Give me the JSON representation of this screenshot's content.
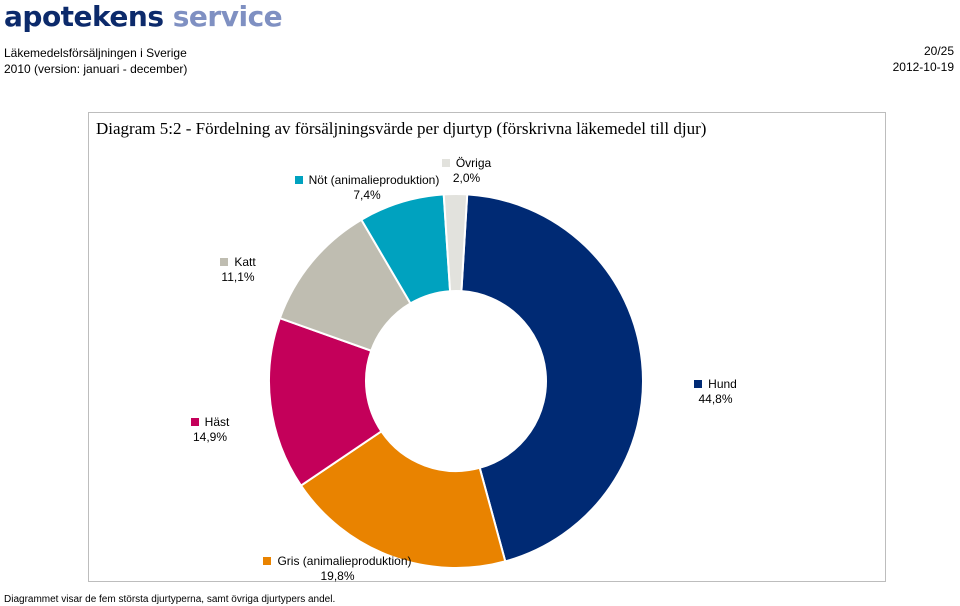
{
  "header": {
    "logo_word1": "apotekens",
    "logo_word2": "service",
    "report_title": "Läkemedelsförsäljningen i Sverige",
    "report_period": "2010 (version: januari - december)",
    "page_number": "20/25",
    "date": "2012-10-19"
  },
  "chart_data": {
    "type": "pie",
    "variant": "donut",
    "title": "Diagram 5:2  - Fördelning av försäljningsvärde per djurtyp (förskrivna läkemedel till djur)",
    "slices": [
      {
        "name": "Hund",
        "value_label": "44,8%",
        "value": 44.8,
        "color": "#002a74"
      },
      {
        "name": "Gris (animalieproduktion)",
        "value_label": "19,8%",
        "value": 19.8,
        "color": "#e98300"
      },
      {
        "name": "Häst",
        "value_label": "14,9%",
        "value": 14.9,
        "color": "#c4005a"
      },
      {
        "name": "Katt",
        "value_label": "11,1%",
        "value": 11.1,
        "color": "#bfbdb1"
      },
      {
        "name": "Nöt (animalieproduktion)",
        "value_label": "7,4%",
        "value": 7.4,
        "color": "#00a2bf"
      },
      {
        "name": "Övriga",
        "value_label": "2,0%",
        "value": 2.0,
        "color": "#e2e2dd"
      }
    ]
  },
  "footnote": "Diagrammet visar de fem största djurtyperna, samt övriga djurtypers andel."
}
